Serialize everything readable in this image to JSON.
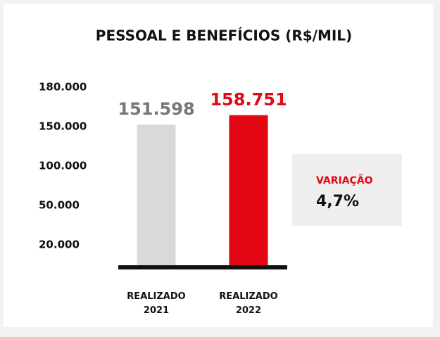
{
  "chart_data": {
    "type": "bar",
    "title": "PESSOAL E BENEFÍCIOS (R$/MIL)",
    "categories": [
      "REALIZADO 2021",
      "REALIZADO 2022"
    ],
    "values": [
      151598,
      158751
    ],
    "value_labels": [
      "151.598",
      "158.751"
    ],
    "colors": [
      "#d9d9d9",
      "#e30613"
    ],
    "value_label_colors": [
      "#777777",
      "#e30613"
    ],
    "ylim": [
      0,
      180000
    ],
    "yticks": [
      {
        "value": 20000,
        "label": "20.000"
      },
      {
        "value": 50000,
        "label": "50.000"
      },
      {
        "value": 100000,
        "label": "100.000"
      },
      {
        "value": 150000,
        "label": "150.000"
      },
      {
        "value": 180000,
        "label": "180.000"
      }
    ],
    "variation": {
      "title": "VARIAÇÃO",
      "text": "4,7%"
    }
  }
}
